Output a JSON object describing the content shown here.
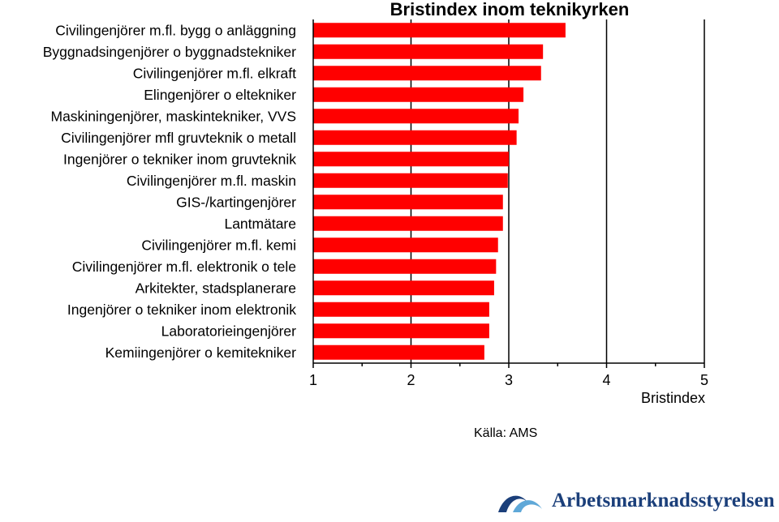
{
  "chart_data": {
    "type": "bar",
    "orientation": "horizontal",
    "title": "Bristindex inom teknikyrken",
    "xlabel": "Bristindex",
    "ylabel": "",
    "xlim": [
      1,
      5
    ],
    "xticks": [
      1,
      2,
      3,
      4,
      5
    ],
    "grid": "vertical",
    "bar_color": "#ff0000",
    "categories": [
      "Civilingenjörer m.fl. bygg o anläggning",
      "Byggnadsingenjörer o byggnadstekniker",
      "Civilingenjörer m.fl. elkraft",
      "Elingenjörer o eltekniker",
      "Maskiningenjörer, maskintekniker, VVS",
      "Civilingenjörer mfl gruvteknik o metall",
      "Ingenjörer o tekniker inom gruvteknik",
      "Civilingenjörer m.fl. maskin",
      "GIS-/kartingenjörer",
      "Lantmätare",
      "Civilingenjörer m.fl. kemi",
      "Civilingenjörer m.fl. elektronik o tele",
      "Arkitekter, stadsplanerare",
      "Ingenjörer o tekniker inom elektronik",
      "Laboratorieingenjörer",
      "Kemiingenjörer o kemitekniker"
    ],
    "values": [
      3.58,
      3.35,
      3.33,
      3.15,
      3.1,
      3.08,
      3.0,
      2.99,
      2.94,
      2.94,
      2.89,
      2.87,
      2.85,
      2.8,
      2.8,
      2.75
    ]
  },
  "source": "Källa: AMS",
  "logo": {
    "text": "Arbetsmarknadsstyrelsen",
    "color": "#1b3f7a",
    "icon": "ams-wave-logo-icon"
  }
}
